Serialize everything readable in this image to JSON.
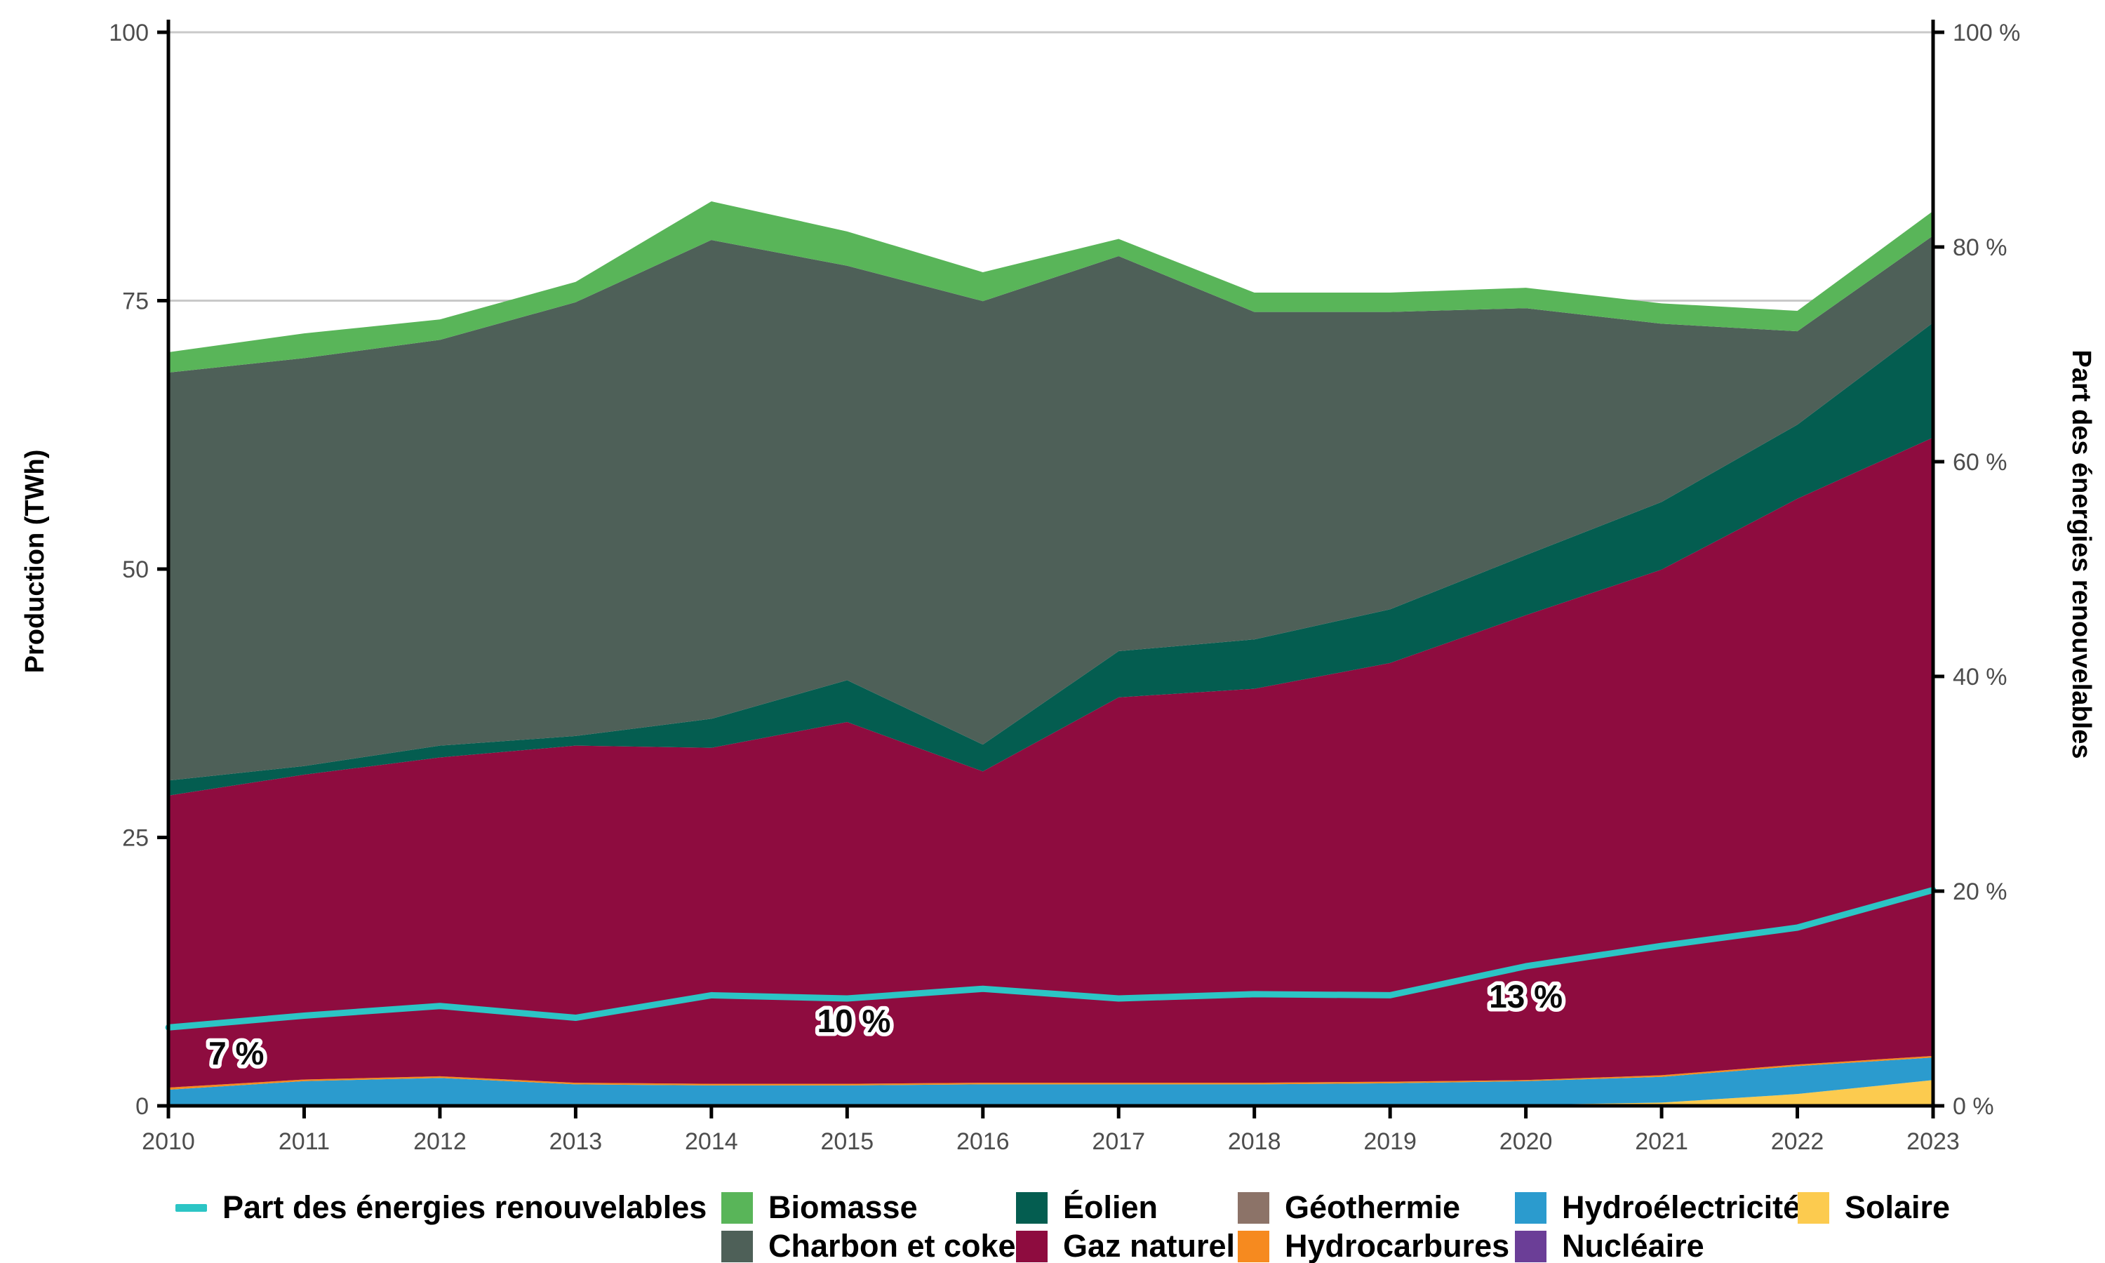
{
  "figure": {
    "left_axis_title": "Production (TWh)",
    "right_axis_title": "Part des énergies renouvelables",
    "background": "#ffffff",
    "grid_color": "#c9c9c9",
    "axis_color": "#000000",
    "tick_text_color": "#4d4d4d"
  },
  "chart_data": {
    "type": "area",
    "stacked": true,
    "x": [
      2010,
      2011,
      2012,
      2013,
      2014,
      2015,
      2016,
      2017,
      2018,
      2019,
      2020,
      2021,
      2022,
      2023
    ],
    "x_labels": [
      "2010",
      "2011",
      "2012",
      "2013",
      "2014",
      "2015",
      "2016",
      "2017",
      "2018",
      "2019",
      "2020",
      "2021",
      "2022",
      "2023"
    ],
    "ylabel": "Production (TWh)",
    "y2label": "Part des énergies renouvelables",
    "ylim": [
      0,
      100
    ],
    "y2lim": [
      0,
      100
    ],
    "grid": true,
    "grid_values": [
      25,
      50,
      75,
      100
    ],
    "y_ticks": [
      {
        "value": 0,
        "label": "0"
      },
      {
        "value": 25,
        "label": "25"
      },
      {
        "value": 50,
        "label": "50"
      },
      {
        "value": 75,
        "label": "75"
      },
      {
        "value": 100,
        "label": "100"
      }
    ],
    "y2_ticks": [
      {
        "value": 0,
        "label": "0 %"
      },
      {
        "value": 20,
        "label": "20 %"
      },
      {
        "value": 40,
        "label": "40 %"
      },
      {
        "value": 60,
        "label": "60 %"
      },
      {
        "value": 80,
        "label": "80 %"
      },
      {
        "value": 100,
        "label": "100 %"
      }
    ],
    "series": [
      {
        "name": "Solaire",
        "color": "#FCCB4F",
        "values": [
          0,
          0,
          0,
          0,
          0,
          0,
          0,
          0,
          0,
          0,
          0.1,
          0.3,
          1.1,
          2.4
        ]
      },
      {
        "name": "Nucléaire",
        "color": "#6B3E97",
        "values": [
          0,
          0,
          0,
          0,
          0,
          0,
          0,
          0,
          0,
          0,
          0,
          0,
          0,
          0
        ]
      },
      {
        "name": "Hydroélectricité",
        "color": "#2B9BCE",
        "values": [
          1.5,
          2.3,
          2.6,
          2.0,
          1.9,
          1.9,
          2.0,
          2.0,
          2.0,
          2.1,
          2.2,
          2.4,
          2.6,
          2.1
        ]
      },
      {
        "name": "Hydrocarbures",
        "color": "#F68A1F",
        "values": [
          0.2,
          0.15,
          0.15,
          0.15,
          0.15,
          0.15,
          0.15,
          0.15,
          0.15,
          0.15,
          0.1,
          0.15,
          0.15,
          0.15
        ]
      },
      {
        "name": "Géothermie",
        "color": "#8C7368",
        "values": [
          0,
          0,
          0,
          0,
          0,
          0,
          0,
          0,
          0,
          0,
          0,
          0,
          0,
          0
        ]
      },
      {
        "name": "Gaz naturel",
        "color": "#8E0C3F",
        "values": [
          27.2,
          28.4,
          29.7,
          31.4,
          31.3,
          33.7,
          29.0,
          35.9,
          36.7,
          39.0,
          43.3,
          47.1,
          52.7,
          57.6
        ]
      },
      {
        "name": "Éolien",
        "color": "#045D50",
        "values": [
          1.4,
          0.8,
          1.1,
          0.9,
          2.7,
          3.9,
          2.5,
          4.3,
          4.6,
          5.0,
          5.6,
          6.3,
          6.9,
          10.7
        ]
      },
      {
        "name": "Charbon et coke",
        "color": "#4E6058",
        "values": [
          38.0,
          38.0,
          37.8,
          40.4,
          44.6,
          38.6,
          41.3,
          36.8,
          30.5,
          27.7,
          23.0,
          16.6,
          8.7,
          8.1
        ]
      },
      {
        "name": "Biomasse",
        "color": "#59B559",
        "values": [
          1.9,
          2.3,
          1.9,
          1.9,
          3.6,
          3.2,
          2.7,
          1.6,
          1.8,
          1.8,
          1.9,
          1.9,
          1.9,
          2.3
        ]
      }
    ],
    "line_series": {
      "name": "Part des énergies renouvelables",
      "color": "#2CC5C5",
      "axis": "right",
      "values": [
        7.3,
        8.4,
        9.3,
        8.2,
        10.3,
        10.0,
        10.9,
        10.0,
        10.4,
        10.3,
        13.0,
        14.9,
        16.6,
        20.1
      ]
    },
    "annotations": [
      {
        "text": "7 %",
        "x": 2010.5,
        "y": 4.9
      },
      {
        "text": "10 %",
        "x": 2015.05,
        "y": 7.9
      },
      {
        "text": "13 %",
        "x": 2020.0,
        "y": 10.2
      }
    ],
    "legend_position": "bottom"
  },
  "legend": {
    "columns": [
      {
        "items": [
          {
            "kind": "line",
            "label": "Part des énergies renouvelables",
            "color": "#2CC5C5"
          }
        ]
      },
      {
        "items": [
          {
            "kind": "square",
            "label": "Biomasse",
            "color": "#59B559"
          },
          {
            "kind": "square",
            "label": "Charbon et coke",
            "color": "#4E6058"
          }
        ]
      },
      {
        "items": [
          {
            "kind": "square",
            "label": "Éolien",
            "color": "#045D50"
          },
          {
            "kind": "square",
            "label": "Gaz naturel",
            "color": "#8E0C3F"
          }
        ]
      },
      {
        "items": [
          {
            "kind": "square",
            "label": "Géothermie",
            "color": "#8C7368"
          },
          {
            "kind": "square",
            "label": "Hydrocarbures",
            "color": "#F68A1F"
          }
        ]
      },
      {
        "items": [
          {
            "kind": "square",
            "label": "Hydroélectricité",
            "color": "#2B9BCE"
          },
          {
            "kind": "square",
            "label": "Nucléaire",
            "color": "#6B3E97"
          }
        ]
      },
      {
        "items": [
          {
            "kind": "square",
            "label": "Solaire",
            "color": "#FCCB4F"
          }
        ]
      }
    ]
  }
}
